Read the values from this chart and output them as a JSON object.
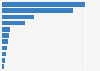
{
  "values": [
    100,
    85,
    38,
    28,
    10,
    8,
    7,
    6,
    5,
    4,
    2
  ],
  "bar_color": "#3a7fc1",
  "background_color": "#f5f5f5",
  "grid_color": "#ffffff",
  "xlim": [
    0,
    115
  ],
  "bar_height": 0.72
}
